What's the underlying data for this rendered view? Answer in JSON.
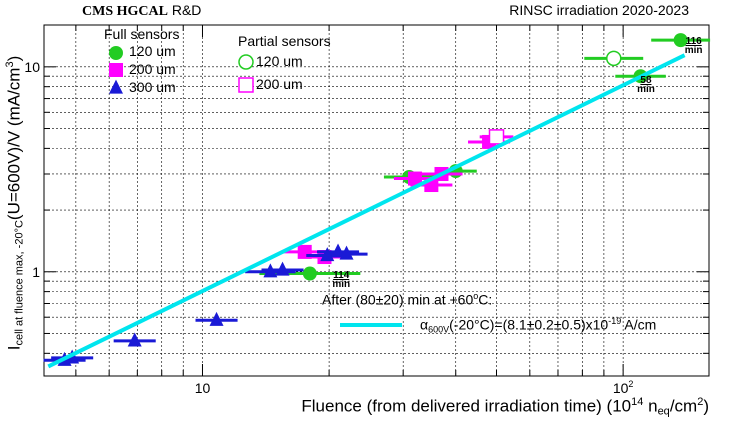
{
  "header": {
    "left_bold": "CMS HGCAL",
    "left_rest": " R&D",
    "right": "RINSC irradiation 2020-2023"
  },
  "chart_data": {
    "type": "scatter",
    "xscale": "log",
    "yscale": "log",
    "xlim": [
      4.2,
      160
    ],
    "ylim": [
      0.31,
      16
    ],
    "xticks": [
      10,
      100
    ],
    "xtick_labels": [
      "10",
      "10²"
    ],
    "yticks": [
      1,
      10
    ],
    "ytick_labels": [
      "1",
      "10"
    ],
    "grid": true,
    "ylabel": {
      "main": "I",
      "sub": "cell at fluence max, -20°C",
      "rest": "(U=600V)/V (mA/cm",
      "sup": "3",
      "end": ")"
    },
    "xlabel": {
      "main": "Fluence (from delivered irradiation time) (10",
      "sup1": "14",
      "mid": " n",
      "sub": "eq",
      "rest": "/cm",
      "sup2": "2",
      "end": ")"
    },
    "legend": {
      "full_title": "Full sensors",
      "partial_title": "Partial sensors",
      "full": [
        {
          "label": "120 um",
          "marker": "circle",
          "color": "#22cc22"
        },
        {
          "label": "200 um",
          "marker": "square",
          "color": "#ff00ff"
        },
        {
          "label": "300 um",
          "marker": "triangle",
          "color": "#1a1ad6"
        }
      ],
      "partial": [
        {
          "label": "120 um",
          "marker": "circle-open",
          "color": "#22cc22"
        },
        {
          "label": "200 um",
          "marker": "square-open",
          "color": "#ff00ff"
        }
      ]
    },
    "series": [
      {
        "name": "Full 120 um",
        "marker": "circle",
        "color": "#22cc22",
        "points": [
          {
            "x": 18.0,
            "y": 0.98,
            "xerr": 0.12
          },
          {
            "x": 31.0,
            "y": 2.9,
            "xerr": 0.06
          },
          {
            "x": 40.0,
            "y": 3.1,
            "xerr": 0.05
          },
          {
            "x": 110.0,
            "y": 9.0,
            "xerr": 0.06
          },
          {
            "x": 137.0,
            "y": 13.5,
            "xerr": 0.07
          }
        ]
      },
      {
        "name": "Full 200 um",
        "marker": "square",
        "color": "#ff00ff",
        "points": [
          {
            "x": 17.5,
            "y": 1.25,
            "xerr": 0.05
          },
          {
            "x": 19.5,
            "y": 1.18,
            "xerr": 0.05
          },
          {
            "x": 32.0,
            "y": 2.85,
            "xerr": 0.05
          },
          {
            "x": 35.0,
            "y": 2.65,
            "xerr": 0.05
          },
          {
            "x": 37.0,
            "y": 3.0,
            "xerr": 0.05
          },
          {
            "x": 48.0,
            "y": 4.3,
            "xerr": 0.05
          }
        ]
      },
      {
        "name": "Full 300 um",
        "marker": "triangle",
        "color": "#1a1ad6",
        "points": [
          {
            "x": 4.7,
            "y": 0.37,
            "xerr": 0.05
          },
          {
            "x": 4.9,
            "y": 0.38,
            "xerr": 0.05
          },
          {
            "x": 6.9,
            "y": 0.46,
            "xerr": 0.05
          },
          {
            "x": 10.8,
            "y": 0.58,
            "xerr": 0.05
          },
          {
            "x": 14.5,
            "y": 1.0,
            "xerr": 0.06
          },
          {
            "x": 15.5,
            "y": 1.02,
            "xerr": 0.05
          },
          {
            "x": 19.8,
            "y": 1.2,
            "xerr": 0.05
          },
          {
            "x": 21.0,
            "y": 1.25,
            "xerr": 0.05
          },
          {
            "x": 22.0,
            "y": 1.22,
            "xerr": 0.05
          }
        ]
      },
      {
        "name": "Partial 120 um",
        "marker": "circle-open",
        "color": "#22cc22",
        "points": [
          {
            "x": 95.0,
            "y": 11.0,
            "xerr": 0.07
          }
        ]
      },
      {
        "name": "Partial 200 um",
        "marker": "square-open",
        "color": "#ff00ff",
        "points": [
          {
            "x": 50.0,
            "y": 4.55,
            "xerr": 0.04
          }
        ]
      }
    ],
    "fit": {
      "color": "#00e5ee",
      "x": [
        4.3,
        140
      ],
      "y": [
        0.345,
        11.4
      ],
      "legend_label": {
        "alpha": "α",
        "sub": "600V",
        "rest": "(-20°C)=(8.1±0.2±0.5)x10",
        "sup": "-19",
        "end": " A/cm"
      }
    },
    "annotation_title": {
      "text": "After (80±20) min at +60",
      "sup": "o",
      "end": "C:"
    },
    "annotations": [
      {
        "value": "114",
        "unit": "min",
        "x": 21.5,
        "y": 0.96
      },
      {
        "value": "58",
        "unit": "min",
        "x": 114,
        "y": 8.6
      },
      {
        "value": "116",
        "unit": "min",
        "x": 148,
        "y": 13.4
      }
    ]
  }
}
